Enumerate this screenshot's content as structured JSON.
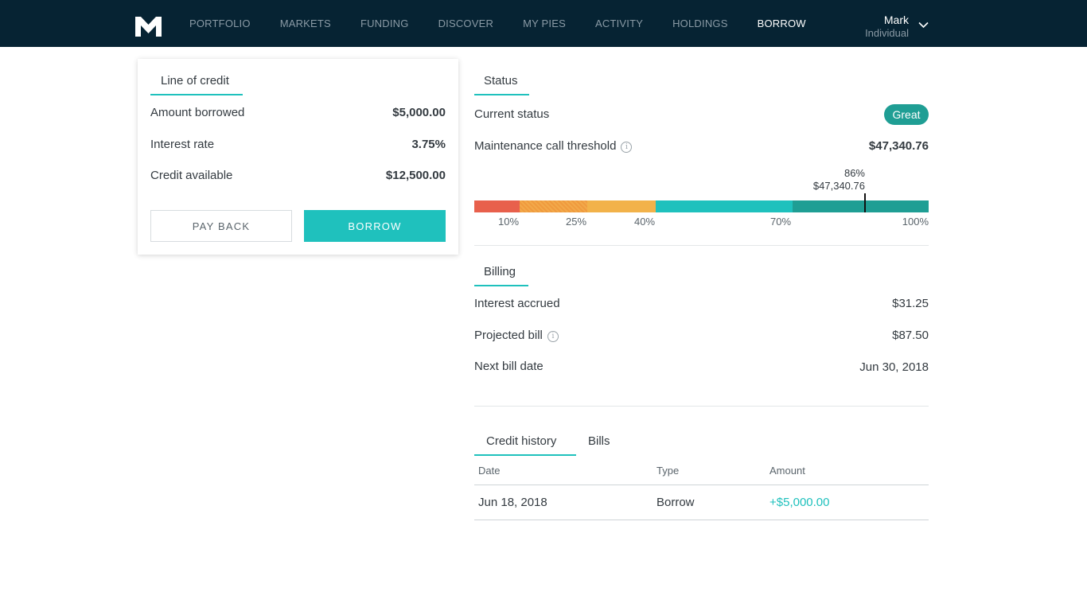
{
  "nav": {
    "logo": "m1-logo-icon",
    "items": [
      {
        "label": "PORTFOLIO"
      },
      {
        "label": "MARKETS"
      },
      {
        "label": "FUNDING"
      },
      {
        "label": "DISCOVER"
      },
      {
        "label": "MY PIES"
      },
      {
        "label": "ACTIVITY"
      },
      {
        "label": "HOLDINGS"
      },
      {
        "label": "BORROW"
      }
    ],
    "active": "BORROW",
    "user": {
      "name": "Mark",
      "account_type": "Individual"
    }
  },
  "line_of_credit": {
    "tab": "Line of credit",
    "rows": [
      {
        "label": "Amount borrowed",
        "value": "$5,000.00"
      },
      {
        "label": "Interest rate",
        "value": "3.75%"
      },
      {
        "label": "Credit available",
        "value": "$12,500.00"
      }
    ],
    "pay_back_label": "PAY BACK",
    "borrow_label": "BORROW"
  },
  "status": {
    "tab": "Status",
    "current_status_label": "Current status",
    "current_status_value": "Great",
    "threshold_label": "Maintenance call threshold",
    "threshold_value": "$47,340.76",
    "marker_percent_label": "86%",
    "marker_value_label": "$47,340.76",
    "marker_level": 0.86,
    "ticks": [
      "10%",
      "25%",
      "40%",
      "70%",
      "100%"
    ],
    "colors": {
      "red": "#e8604c",
      "orange": "#f09a3e",
      "yellow": "#f2b24a",
      "teal": "#1fc1bd",
      "dark_teal": "#1f9e94",
      "accent": "#1fc1bd",
      "nav_bg": "#062333"
    }
  },
  "billing": {
    "tab": "Billing",
    "rows": [
      {
        "label": "Interest accrued",
        "value": "$31.25"
      },
      {
        "label": "Projected bill",
        "value": "$87.50"
      },
      {
        "label": "Next bill date",
        "value": "Jun 30, 2018"
      }
    ]
  },
  "history": {
    "tabs": [
      {
        "label": "Credit history"
      },
      {
        "label": "Bills"
      }
    ],
    "columns": [
      "Date",
      "Type",
      "Amount"
    ],
    "rows": [
      {
        "date": "Jun 18, 2018",
        "type": "Borrow",
        "amount": "+$5,000.00"
      }
    ]
  }
}
